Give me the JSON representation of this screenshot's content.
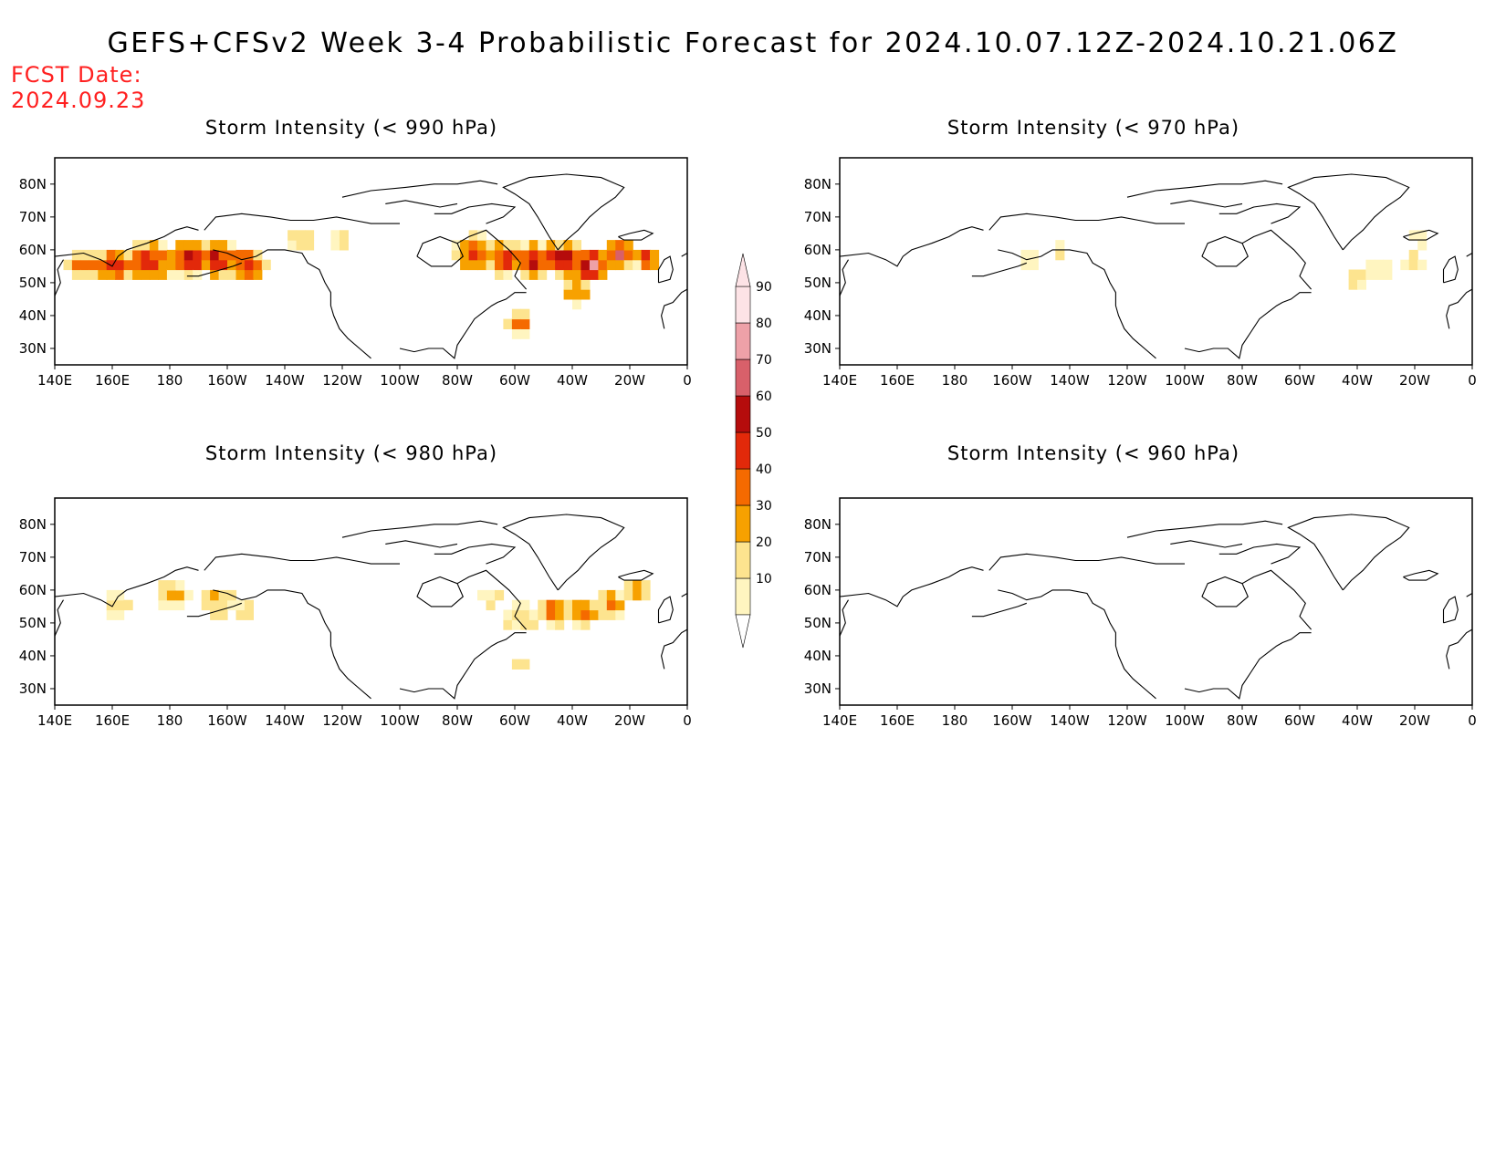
{
  "title": "GEFS+CFSv2 Week 3-4 Probabilistic Forecast for 2024.10.07.12Z-2024.10.21.06Z",
  "fcst_label": "FCST Date:",
  "fcst_date": "2024.09.23",
  "lon_labels": [
    "140E",
    "160E",
    "180",
    "160W",
    "140W",
    "120W",
    "100W",
    "80W",
    "60W",
    "40W",
    "20W",
    "0"
  ],
  "lat_labels": [
    "80N",
    "70N",
    "60N",
    "50N",
    "40N",
    "30N"
  ],
  "panels": [
    {
      "id": "p990",
      "title": "Storm Intensity (< 990 hPa)",
      "intensity": "high"
    },
    {
      "id": "p970",
      "title": "Storm Intensity (< 970 hPa)",
      "intensity": "low"
    },
    {
      "id": "p980",
      "title": "Storm Intensity (< 980 hPa)",
      "intensity": "mid"
    },
    {
      "id": "p960",
      "title": "Storm Intensity (< 960 hPa)",
      "intensity": "verylow"
    }
  ],
  "colorbar": {
    "levels": [
      "10",
      "20",
      "30",
      "40",
      "50",
      "60",
      "70",
      "80",
      "90"
    ],
    "colors": [
      "#fff5c0",
      "#fde48f",
      "#f7a100",
      "#f56a00",
      "#e2290a",
      "#b50c0c",
      "#d8606a",
      "#eea1a8",
      "#fde3e6"
    ]
  }
}
